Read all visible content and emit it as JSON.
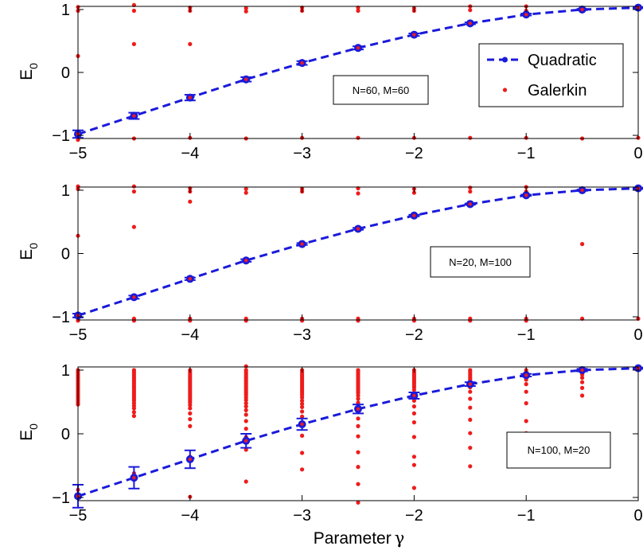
{
  "chart_data": [
    {
      "type": "line",
      "ylabel": "E",
      "ylabel_sub": "0",
      "xlim": [
        -5,
        0
      ],
      "ylim": [
        -1.05,
        1.05
      ],
      "xticks": [
        -5,
        -4,
        -3,
        -2,
        -1,
        0
      ],
      "xtick_labels": [
        "−5",
        "−4",
        "−3",
        "−2",
        "−1",
        "0"
      ],
      "yticks": [
        -1,
        0,
        1
      ],
      "ytick_labels": [
        "−1",
        "0",
        "1"
      ],
      "annotation": "N=60, M=60",
      "legend": {
        "placement": "top-right",
        "entries": [
          "Quadratic",
          "Galerkin"
        ]
      },
      "series": [
        {
          "name": "Quadratic",
          "style": "dashed-line-with-errorbars",
          "color": "#1a1adb",
          "x": [
            -5,
            -4.5,
            -4,
            -3.5,
            -3,
            -2.5,
            -2,
            -1.5,
            -1,
            -0.5,
            0
          ],
          "y": [
            -0.98,
            -0.69,
            -0.4,
            -0.11,
            0.15,
            0.39,
            0.6,
            0.78,
            0.92,
            1.0,
            1.03
          ],
          "err": [
            0.06,
            0.05,
            0.045,
            0.035,
            0.03,
            0.025,
            0.02,
            0.015,
            0.015,
            0.01,
            0.01
          ]
        },
        {
          "name": "Galerkin",
          "style": "markers",
          "color": "#ee1c1c",
          "groups": [
            {
              "x": -5,
              "y": [
                1.04,
                0.98,
                0.26,
                -1.04,
                -1.07
              ]
            },
            {
              "x": -4.5,
              "y": [
                1.07,
                0.98,
                0.45,
                -1.05
              ]
            },
            {
              "x": -4,
              "y": [
                1.03,
                0.98,
                0.45,
                -1.04
              ]
            },
            {
              "x": -3.5,
              "y": [
                1.02,
                0.97,
                -1.05
              ]
            },
            {
              "x": -3,
              "y": [
                1.03,
                0.98,
                -1.04
              ]
            },
            {
              "x": -2.5,
              "y": [
                1.03,
                0.98,
                -1.04
              ]
            },
            {
              "x": -2,
              "y": [
                1.02,
                0.98,
                -1.04
              ]
            },
            {
              "x": -1.5,
              "y": [
                1.05,
                0.99,
                -1.04
              ]
            },
            {
              "x": -1,
              "y": [
                1.05,
                0.98,
                -1.04
              ]
            },
            {
              "x": -0.5,
              "y": [
                1.02,
                -1.05
              ]
            },
            {
              "x": 0,
              "y": [
                1.03,
                -1.04
              ]
            }
          ]
        }
      ]
    },
    {
      "type": "line",
      "ylabel": "E",
      "ylabel_sub": "0",
      "xlim": [
        -5,
        0
      ],
      "ylim": [
        -1.05,
        1.05
      ],
      "xticks": [
        -5,
        -4,
        -3,
        -2,
        -1,
        0
      ],
      "xtick_labels": [
        "−5",
        "−4",
        "−3",
        "−2",
        "−1",
        "0"
      ],
      "yticks": [
        -1,
        0,
        1
      ],
      "ytick_labels": [
        "−1",
        "0",
        "1"
      ],
      "annotation": "N=20, M=100",
      "series": [
        {
          "name": "Quadratic",
          "style": "dashed-line-with-errorbars",
          "color": "#1a1adb",
          "x": [
            -5,
            -4.5,
            -4,
            -3.5,
            -3,
            -2.5,
            -2,
            -1.5,
            -1,
            -0.5,
            0
          ],
          "y": [
            -0.98,
            -0.69,
            -0.4,
            -0.11,
            0.15,
            0.39,
            0.6,
            0.78,
            0.92,
            1.0,
            1.03
          ],
          "err": [
            0.03,
            0.025,
            0.02,
            0.02,
            0.015,
            0.015,
            0.012,
            0.01,
            0.01,
            0.01,
            0.01
          ]
        },
        {
          "name": "Galerkin",
          "style": "markers",
          "color": "#ee1c1c",
          "groups": [
            {
              "x": -5,
              "y": [
                1.06,
                1.02,
                0.28,
                -1.03,
                -1.06
              ]
            },
            {
              "x": -4.5,
              "y": [
                1.06,
                0.98,
                0.42,
                -1.03,
                -1.06
              ]
            },
            {
              "x": -4,
              "y": [
                1.03,
                0.98,
                0.82,
                -1.03,
                -1.06
              ]
            },
            {
              "x": -3.5,
              "y": [
                1.02,
                0.96,
                -1.03,
                -1.06
              ]
            },
            {
              "x": -3,
              "y": [
                1.02,
                0.98,
                -1.03,
                -1.06
              ]
            },
            {
              "x": -2.5,
              "y": [
                1.03,
                0.95,
                -1.03,
                -1.06
              ]
            },
            {
              "x": -2,
              "y": [
                1.02,
                0.96,
                -1.03,
                -1.06
              ]
            },
            {
              "x": -1.5,
              "y": [
                1.04,
                0.98,
                -1.03,
                -1.06
              ]
            },
            {
              "x": -1,
              "y": [
                1.05,
                0.98,
                -1.03,
                -1.06
              ]
            },
            {
              "x": -0.5,
              "y": [
                1.02,
                0.15,
                -1.03
              ]
            },
            {
              "x": 0,
              "y": [
                1.03,
                -1.03
              ]
            }
          ]
        }
      ]
    },
    {
      "type": "line",
      "ylabel": "E",
      "ylabel_sub": "0",
      "xlabel": "Parameter",
      "xlabel_symbol": "γ",
      "xlim": [
        -5,
        0
      ],
      "ylim": [
        -1.05,
        1.05
      ],
      "xticks": [
        -5,
        -4,
        -3,
        -2,
        -1,
        0
      ],
      "xtick_labels": [
        "−5",
        "−4",
        "−3",
        "−2",
        "−1",
        "0"
      ],
      "yticks": [
        -1,
        0,
        1
      ],
      "ytick_labels": [
        "−1",
        "0",
        "1"
      ],
      "annotation": "N=100, M=20",
      "series": [
        {
          "name": "Quadratic",
          "style": "dashed-line-with-errorbars",
          "color": "#1a1adb",
          "x": [
            -5,
            -4.5,
            -4,
            -3.5,
            -3,
            -2.5,
            -2,
            -1.5,
            -1,
            -0.5,
            0
          ],
          "y": [
            -0.98,
            -0.69,
            -0.4,
            -0.11,
            0.15,
            0.39,
            0.6,
            0.78,
            0.92,
            1.0,
            1.03
          ],
          "err": [
            0.18,
            0.17,
            0.14,
            0.11,
            0.09,
            0.07,
            0.05,
            0.03,
            0.02,
            0.02,
            0.01
          ]
        },
        {
          "name": "Galerkin",
          "style": "markers",
          "color": "#ee1c1c",
          "groups": [
            {
              "x": -5,
              "y": [
                1.0,
                0.97,
                0.94,
                0.91,
                0.88,
                0.85,
                0.82,
                0.79,
                0.76,
                0.73,
                0.7,
                0.67,
                0.64,
                0.61,
                0.58,
                0.55,
                0.52,
                0.49,
                0.46,
                -0.88,
                -0.97,
                -1.0
              ]
            },
            {
              "x": -4.5,
              "y": [
                1.0,
                0.97,
                0.94,
                0.91,
                0.88,
                0.85,
                0.82,
                0.79,
                0.76,
                0.73,
                0.7,
                0.67,
                0.64,
                0.61,
                0.58,
                0.55,
                0.52,
                0.48,
                0.44,
                0.4,
                0.34,
                0.28,
                -0.62,
                -0.68
              ]
            },
            {
              "x": -4,
              "y": [
                1.0,
                0.97,
                0.94,
                0.91,
                0.88,
                0.85,
                0.82,
                0.79,
                0.76,
                0.73,
                0.7,
                0.67,
                0.64,
                0.61,
                0.58,
                0.55,
                0.52,
                0.49,
                0.45,
                0.4,
                0.32,
                0.23,
                0.12,
                -0.36,
                -0.43,
                -0.99
              ]
            },
            {
              "x": -3.5,
              "y": [
                1.06,
                1.0,
                0.97,
                0.94,
                0.91,
                0.88,
                0.85,
                0.82,
                0.79,
                0.76,
                0.73,
                0.7,
                0.67,
                0.64,
                0.61,
                0.57,
                0.53,
                0.48,
                0.43,
                0.37,
                0.3,
                0.2,
                0.08,
                -0.05,
                -0.25,
                -0.75
              ]
            },
            {
              "x": -3,
              "y": [
                1.0,
                0.97,
                0.94,
                0.91,
                0.88,
                0.85,
                0.82,
                0.79,
                0.76,
                0.73,
                0.7,
                0.67,
                0.64,
                0.61,
                0.57,
                0.52,
                0.47,
                0.42,
                0.35,
                0.27,
                0.14,
                -0.03,
                -0.3,
                -0.56
              ]
            },
            {
              "x": -2.5,
              "y": [
                1.0,
                0.97,
                0.94,
                0.91,
                0.88,
                0.85,
                0.82,
                0.79,
                0.76,
                0.73,
                0.7,
                0.67,
                0.64,
                0.6,
                0.55,
                0.49,
                0.42,
                0.34,
                0.24,
                0.12,
                -0.04,
                -0.29,
                -0.52,
                -0.79,
                -1.08
              ]
            },
            {
              "x": -2,
              "y": [
                1.0,
                0.97,
                0.94,
                0.91,
                0.88,
                0.85,
                0.82,
                0.79,
                0.76,
                0.73,
                0.69,
                0.64,
                0.59,
                0.52,
                0.43,
                0.32,
                0.18,
                -0.05,
                -0.36,
                -0.49,
                -0.85
              ]
            },
            {
              "x": -1.5,
              "y": [
                1.0,
                0.97,
                0.94,
                0.91,
                0.88,
                0.85,
                0.82,
                0.78,
                0.73,
                0.66,
                0.55,
                0.41,
                0.22,
                0.01,
                -0.22,
                -0.51
              ]
            },
            {
              "x": -1,
              "y": [
                1.0,
                0.97,
                0.94,
                0.9,
                0.85,
                0.78,
                0.66,
                0.48,
                0.2,
                0.01,
                -0.15
              ]
            },
            {
              "x": -0.5,
              "y": [
                1.0,
                0.97,
                0.93,
                0.88,
                0.81,
                0.72,
                0.6
              ]
            },
            {
              "x": 0,
              "y": [
                1.03
              ]
            }
          ]
        }
      ]
    }
  ]
}
